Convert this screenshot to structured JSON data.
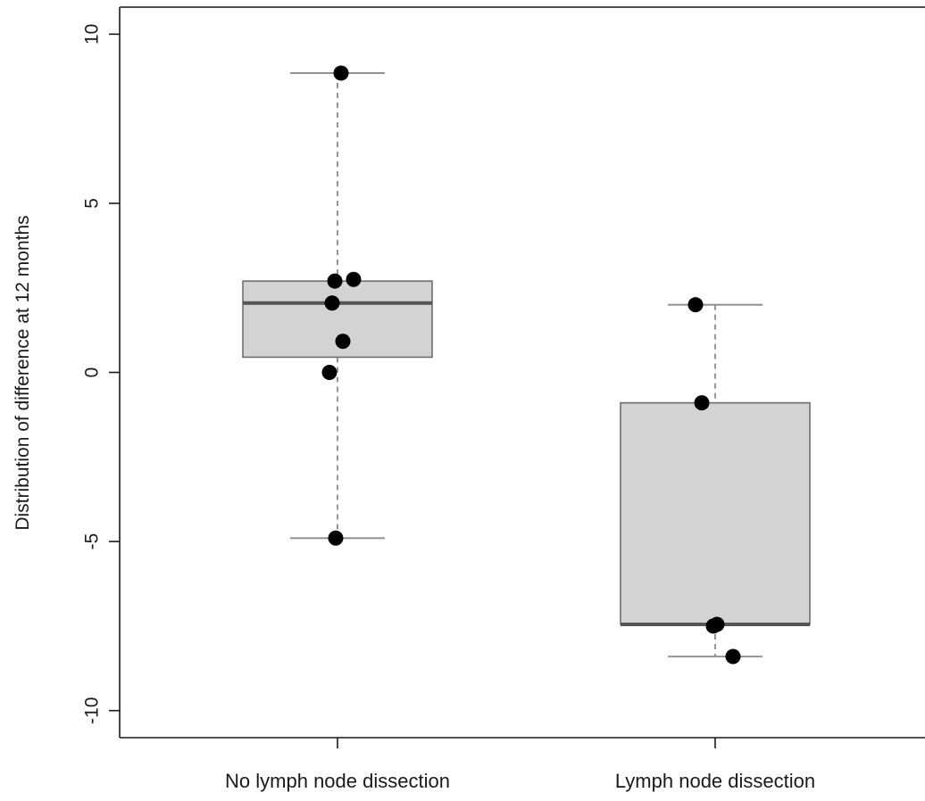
{
  "chart_data": {
    "type": "boxplot",
    "ylabel": "Distribution of difference at 12 months",
    "xlabel": "",
    "ylim": [
      -10.8,
      10.8
    ],
    "yticks": [
      -10,
      -5,
      0,
      5,
      10
    ],
    "ytick_labels": [
      "-10",
      "-5",
      "0",
      "5",
      "10"
    ],
    "categories": [
      "No lymph node dissection",
      "Lymph node dissection"
    ],
    "boxes": [
      {
        "label": "No lymph node dissection",
        "whisker_low": -4.9,
        "q1": 0.45,
        "median": 2.05,
        "q3": 2.7,
        "whisker_high": 8.85,
        "points": [
          8.85,
          2.75,
          2.7,
          2.05,
          0.92,
          0.0,
          -4.9
        ]
      },
      {
        "label": "Lymph node dissection",
        "whisker_low": -8.4,
        "q1": -7.45,
        "median": -7.45,
        "q3": -0.9,
        "whisker_high": 2.0,
        "points": [
          2.0,
          -0.9,
          -7.45,
          -7.5,
          -8.4
        ]
      }
    ],
    "colors": {
      "box_fill": "#d3d3d3",
      "box_stroke": "#6e6e6e",
      "median": "#555555",
      "whisker": "#8a8a8a",
      "point": "#000000",
      "axis": "#1a1a1a"
    },
    "grid": false,
    "legend": "none"
  }
}
